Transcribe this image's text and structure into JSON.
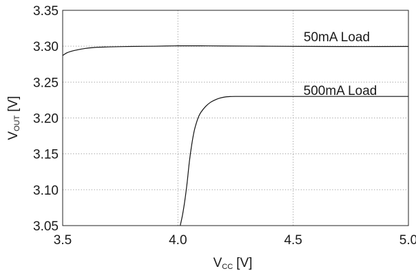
{
  "chart_data": {
    "type": "line",
    "title": "",
    "xlabel": {
      "main": "V",
      "sub": "CC",
      "unit": "[V]"
    },
    "ylabel": {
      "main": "V",
      "sub": "OUT",
      "unit": "[V]"
    },
    "xlim": [
      3.5,
      5.0
    ],
    "ylim": [
      3.05,
      3.35
    ],
    "x_ticks": [
      3.5,
      4.0,
      4.5,
      5.0
    ],
    "x_tick_labels": [
      "3.5",
      "4.0",
      "4.5",
      "5.0"
    ],
    "y_ticks": [
      3.05,
      3.1,
      3.15,
      3.2,
      3.25,
      3.3,
      3.35
    ],
    "y_tick_labels": [
      "3.05",
      "3.10",
      "3.15",
      "3.20",
      "3.25",
      "3.30",
      "3.35"
    ],
    "grid": true,
    "series": [
      {
        "name": "50mA Load",
        "color": "#111111",
        "x": [
          3.5,
          3.52,
          3.55,
          3.6,
          3.65,
          3.7,
          3.8,
          3.9,
          4.0,
          4.1,
          4.2,
          4.4,
          4.6,
          4.8,
          5.0
        ],
        "y": [
          3.287,
          3.291,
          3.294,
          3.297,
          3.2985,
          3.299,
          3.2997,
          3.3,
          3.3005,
          3.3005,
          3.3003,
          3.3,
          3.2997,
          3.2995,
          3.2997
        ]
      },
      {
        "name": "500mA Load",
        "color": "#111111",
        "x": [
          4.01,
          4.02,
          4.03,
          4.04,
          4.05,
          4.06,
          4.07,
          4.08,
          4.09,
          4.1,
          4.12,
          4.14,
          4.16,
          4.18,
          4.2,
          4.22,
          4.25,
          4.4,
          4.6,
          4.8,
          5.0
        ],
        "y": [
          3.05,
          3.065,
          3.085,
          3.11,
          3.14,
          3.163,
          3.181,
          3.193,
          3.202,
          3.208,
          3.216,
          3.2215,
          3.225,
          3.2275,
          3.229,
          3.2297,
          3.23,
          3.23,
          3.23,
          3.23,
          3.23
        ]
      }
    ],
    "annotations": [
      {
        "text": "50mA Load",
        "series": 0
      },
      {
        "text": "500mA Load",
        "series": 1
      }
    ]
  }
}
